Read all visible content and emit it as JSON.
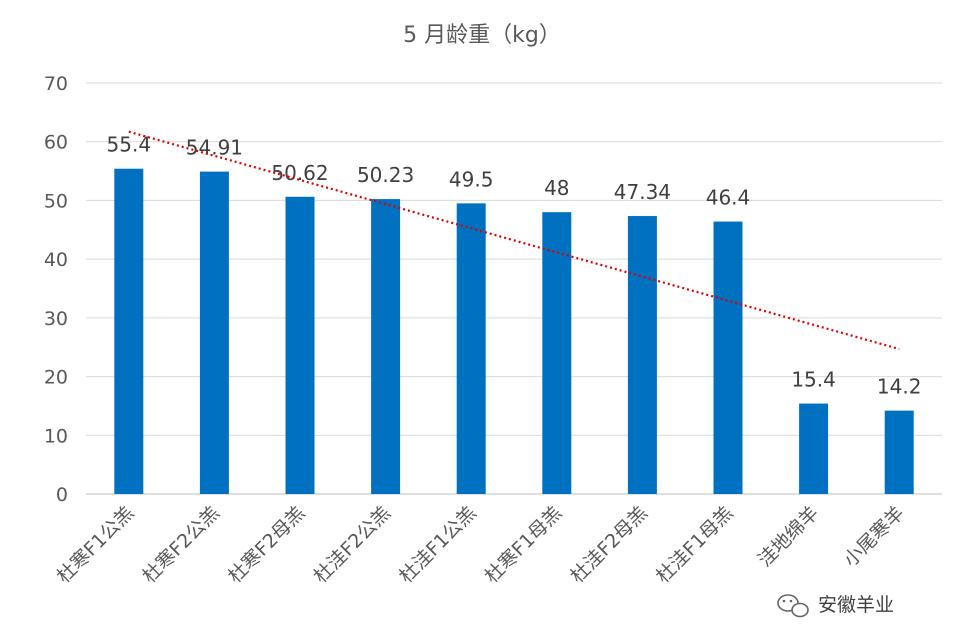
{
  "chart_data": {
    "type": "bar",
    "title": "5 月龄重（kg）",
    "xlabel": "",
    "ylabel": "",
    "ylim": [
      0,
      70
    ],
    "yticks": [
      0,
      10,
      20,
      30,
      40,
      50,
      60,
      70
    ],
    "grid": true,
    "legend": "none",
    "bar_color": "#0070C0",
    "trendline": {
      "type": "linear",
      "style": "dotted",
      "color": "#E00000"
    },
    "categories": [
      "杜寒F1公羔",
      "杜寒F2公羔",
      "杜寒F2母羔",
      "杜洼F2公羔",
      "杜洼F1公羔",
      "杜寒F1母羔",
      "杜洼F2母羔",
      "杜洼F1母羔",
      "洼地绵羊",
      "小尾寒羊"
    ],
    "values": [
      55.4,
      54.91,
      50.62,
      50.23,
      49.5,
      48,
      47.34,
      46.4,
      15.4,
      14.2
    ],
    "value_labels": [
      "55.4",
      "54.91",
      "50.62",
      "50.23",
      "49.5",
      "48",
      "47.34",
      "46.4",
      "15.4",
      "14.2"
    ]
  },
  "watermark": {
    "text": "安徽羊业",
    "icon": "wechat-icon"
  }
}
